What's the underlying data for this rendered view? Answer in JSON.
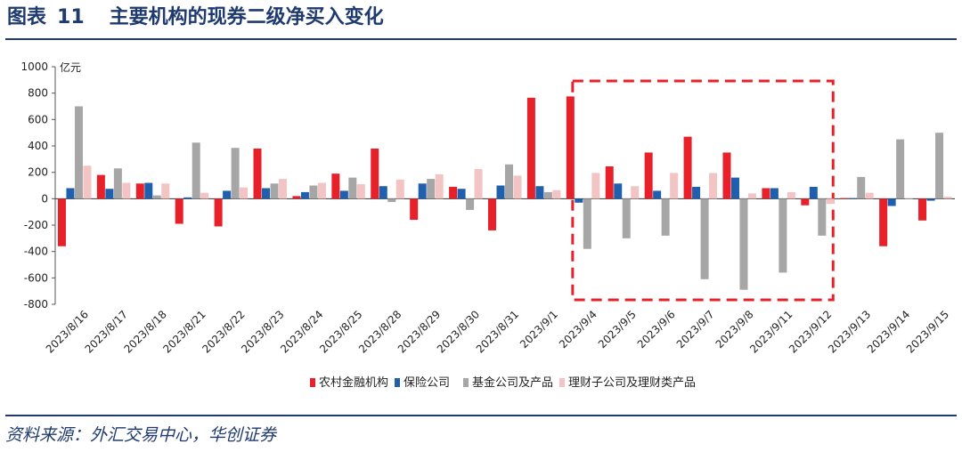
{
  "header": {
    "fig_label": "图表",
    "fig_number": "11",
    "fig_title": "主要机构的现券二级净买入变化"
  },
  "footer": {
    "source": "资料来源：外汇交易中心，华创证券"
  },
  "chart_data": {
    "type": "bar",
    "title": "主要机构的现券二级净买入变化",
    "ylabel": "亿元",
    "xlabel": "",
    "ylim": [
      -800,
      1000
    ],
    "yticks": [
      1000,
      800,
      600,
      400,
      200,
      0,
      -200,
      -400,
      -600,
      -800
    ],
    "grid": false,
    "legend_position": "bottom",
    "highlight_box": {
      "from": "2023/9/4",
      "to": "2023/9/12",
      "style": "red-dashed"
    },
    "categories": [
      "2023/8/16",
      "2023/8/17",
      "2023/8/18",
      "2023/8/21",
      "2023/8/22",
      "2023/8/23",
      "2023/8/24",
      "2023/8/25",
      "2023/8/28",
      "2023/8/29",
      "2023/8/30",
      "2023/8/31",
      "2023/9/1",
      "2023/9/4",
      "2023/9/5",
      "2023/9/6",
      "2023/9/7",
      "2023/9/8",
      "2023/9/11",
      "2023/9/12",
      "2023/9/13",
      "2023/9/14",
      "2023/9/15"
    ],
    "series": [
      {
        "name": "农村金融机构",
        "color": "#e8202a",
        "values": [
          -360,
          180,
          115,
          -190,
          -210,
          380,
          20,
          190,
          380,
          -160,
          90,
          -240,
          765,
          775,
          245,
          350,
          470,
          350,
          80,
          -50,
          5,
          -360,
          -165
        ]
      },
      {
        "name": "保险公司",
        "color": "#1f5fad",
        "values": [
          80,
          75,
          120,
          10,
          60,
          80,
          50,
          60,
          95,
          115,
          75,
          100,
          95,
          -30,
          115,
          60,
          90,
          160,
          80,
          90,
          5,
          -55,
          -15
        ]
      },
      {
        "name": "基金公司及产品",
        "color": "#a6a6a6",
        "values": [
          700,
          230,
          25,
          425,
          385,
          115,
          100,
          160,
          -25,
          150,
          -85,
          260,
          50,
          -380,
          -300,
          -280,
          -610,
          -690,
          -560,
          -280,
          165,
          450,
          500
        ]
      },
      {
        "name": "理财子公司及理财类产品",
        "color": "#f2c4c4",
        "values": [
          250,
          120,
          115,
          45,
          85,
          150,
          120,
          110,
          145,
          185,
          225,
          175,
          65,
          195,
          95,
          195,
          195,
          40,
          50,
          -40,
          45,
          0,
          15
        ]
      }
    ]
  }
}
